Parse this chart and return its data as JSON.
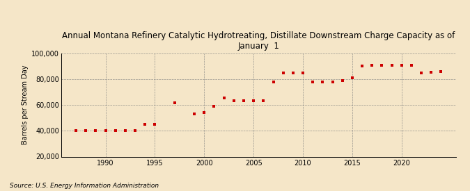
{
  "title": "Annual Montana Refinery Catalytic Hydrotreating, Distillate Downstream Charge Capacity as of\nJanuary  1",
  "ylabel": "Barrels per Stream Day",
  "xlabel": "",
  "source": "Source: U.S. Energy Information Administration",
  "background_color": "#f5e6c8",
  "plot_bg_color": "#f5e6c8",
  "marker_color": "#cc0000",
  "ylim": [
    20000,
    100000
  ],
  "yticks": [
    20000,
    40000,
    60000,
    80000,
    100000
  ],
  "xlim": [
    1985.5,
    2025.5
  ],
  "xticks": [
    1990,
    1995,
    2000,
    2005,
    2010,
    2015,
    2020
  ],
  "years": [
    1987,
    1988,
    1989,
    1990,
    1991,
    1992,
    1993,
    1994,
    1995,
    1997,
    1999,
    2000,
    2001,
    2002,
    2003,
    2004,
    2005,
    2006,
    2007,
    2008,
    2009,
    2010,
    2011,
    2012,
    2013,
    2014,
    2015,
    2016,
    2017,
    2018,
    2019,
    2020,
    2021,
    2022,
    2023,
    2024
  ],
  "values": [
    40000,
    40000,
    40000,
    40000,
    40000,
    40000,
    40000,
    45000,
    45000,
    62000,
    53000,
    54000,
    59000,
    65500,
    63500,
    63500,
    63500,
    63500,
    78000,
    85000,
    85000,
    85000,
    78000,
    78000,
    78000,
    79000,
    81000,
    90500,
    91000,
    91000,
    91000,
    91000,
    91000,
    85000,
    85500,
    86000
  ],
  "title_fontsize": 8.5,
  "tick_fontsize": 7,
  "ylabel_fontsize": 7,
  "source_fontsize": 6.5
}
